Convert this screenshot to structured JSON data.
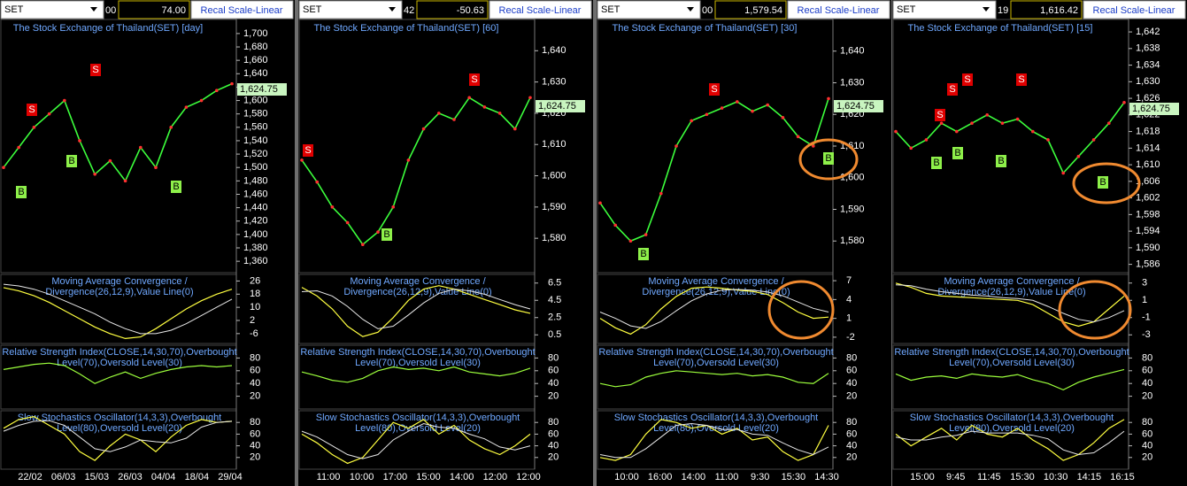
{
  "panels": [
    {
      "symbol": "SET",
      "field": "00",
      "value": "74.00",
      "button": "Recal Scale-Linear",
      "title": "The Stock Exchange of Thailand(SET) [day]",
      "last_price": "1,624.75",
      "price_ylim": [
        1343,
        1721
      ],
      "price_ticks": [
        {
          "value": 1700,
          "label": "1,700"
        },
        {
          "value": 1680,
          "label": "1,680"
        },
        {
          "value": 1660,
          "label": "1,660"
        },
        {
          "value": 1640,
          "label": "1,640"
        },
        {
          "value": 1620,
          "label": "1,620"
        },
        {
          "value": 1600,
          "label": "1,600"
        },
        {
          "value": 1580,
          "label": "1,580"
        },
        {
          "value": 1560,
          "label": "1,560"
        },
        {
          "value": 1540,
          "label": "1,540"
        },
        {
          "value": 1520,
          "label": "1,520"
        },
        {
          "value": 1500,
          "label": "1,500"
        },
        {
          "value": 1480,
          "label": "1,480"
        },
        {
          "value": 1460,
          "label": "1,460"
        },
        {
          "value": 1440,
          "label": "1,440"
        },
        {
          "value": 1420,
          "label": "1,420"
        },
        {
          "value": 1400,
          "label": "1,400"
        },
        {
          "value": 1380,
          "label": "1,380"
        },
        {
          "value": 1360,
          "label": "1,360"
        }
      ],
      "close": [
        1500,
        1530,
        1560,
        1580,
        1600,
        1540,
        1490,
        1510,
        1480,
        1530,
        1500,
        1560,
        1590,
        1600,
        1615,
        1625
      ],
      "signals": [
        "S",
        "S",
        "B",
        "B",
        "B"
      ],
      "macd": {
        "title": [
          "Moving Average Convergence /",
          "Divergence(26,12,9),Value Line(0)"
        ],
        "ylim": [
          -12,
          30
        ],
        "ticks": [
          26,
          18,
          10,
          2,
          -6
        ],
        "values": [
          22,
          20,
          17,
          13,
          8,
          3,
          -2,
          -6,
          -9,
          -8,
          -3,
          3,
          9,
          14,
          18,
          21
        ],
        "signal": [
          24,
          23,
          21,
          18,
          14,
          10,
          6,
          1,
          -3,
          -6,
          -6,
          -4,
          0,
          5,
          10,
          15
        ]
      },
      "rsi": {
        "title": [
          "Relative Strength Index(CLOSE,14,30,70),Overbought",
          "Level(70),Oversold Level(30)"
        ],
        "ylim": [
          0,
          100
        ],
        "ticks": [
          80,
          60,
          40,
          20
        ],
        "values": [
          62,
          66,
          70,
          72,
          68,
          55,
          40,
          50,
          58,
          48,
          56,
          62,
          66,
          68,
          66,
          68
        ]
      },
      "stoch": {
        "title": [
          "Slow Stochastics Oscillator(14,3,3),Overbought",
          "Level(80),Oversold Level(20)"
        ],
        "ylim": [
          0,
          100
        ],
        "ticks": [
          80,
          60,
          40,
          20
        ],
        "values": [
          70,
          85,
          90,
          75,
          60,
          30,
          15,
          40,
          60,
          50,
          30,
          55,
          75,
          85,
          80,
          82
        ],
        "signal": [
          65,
          75,
          82,
          83,
          75,
          55,
          35,
          30,
          38,
          50,
          47,
          45,
          53,
          72,
          80,
          82
        ]
      },
      "x_labels": [
        "22/02",
        "06/03",
        "15/03",
        "26/03",
        "04/04",
        "18/04",
        "29/04"
      ]
    },
    {
      "symbol": "SET",
      "field": "42",
      "value": "-50.63",
      "button": "Recal Scale-Linear",
      "title": "The Stock Exchange of Thailand(SET) [60]",
      "last_price": "1,624.75",
      "price_ylim": [
        1569,
        1650
      ],
      "price_ticks": [
        {
          "value": 1640,
          "label": "1,640"
        },
        {
          "value": 1630,
          "label": "1,630"
        },
        {
          "value": 1620,
          "label": "1,620"
        },
        {
          "value": 1610,
          "label": "1,610"
        },
        {
          "value": 1600,
          "label": "1,600"
        },
        {
          "value": 1590,
          "label": "1,590"
        },
        {
          "value": 1580,
          "label": "1,580"
        }
      ],
      "close": [
        1605,
        1598,
        1590,
        1585,
        1578,
        1582,
        1590,
        1605,
        1615,
        1620,
        1618,
        1625,
        1622,
        1620,
        1615,
        1625
      ],
      "signals": [
        "S",
        "S",
        "B"
      ],
      "macd": {
        "title": [
          "Moving Average Convergence /",
          "Divergence(26,12,9),Value Line(0)"
        ],
        "ylim": [
          -0.5,
          7.5
        ],
        "ticks": [
          6.5,
          4.5,
          2.5,
          0.5
        ],
        "values": [
          6,
          5,
          3.5,
          1.5,
          0.3,
          0.8,
          2.5,
          4.5,
          5.8,
          6.2,
          5.8,
          5.2,
          4.6,
          4,
          3.4,
          3
        ],
        "signal": [
          5.5,
          5.6,
          5,
          3.8,
          2.3,
          1.2,
          1.5,
          2.8,
          4.2,
          5.3,
          5.8,
          5.6,
          5.2,
          4.6,
          4,
          3.5
        ]
      },
      "rsi": {
        "title": [
          "Relative Strength Index(CLOSE,14,30,70),Overbought",
          "Level(70),Oversold Level(30)"
        ],
        "ylim": [
          0,
          100
        ],
        "ticks": [
          80,
          60,
          40,
          20
        ],
        "values": [
          58,
          52,
          45,
          42,
          48,
          60,
          66,
          62,
          64,
          60,
          66,
          58,
          55,
          52,
          56,
          64
        ]
      },
      "stoch": {
        "title": [
          "Slow Stochastics Oscillator(14,3,3),Overbought",
          "Level(80),Oversold Level(20)"
        ],
        "ylim": [
          0,
          100
        ],
        "ticks": [
          80,
          60,
          40,
          20
        ],
        "values": [
          60,
          45,
          25,
          10,
          20,
          50,
          80,
          70,
          85,
          60,
          75,
          50,
          35,
          25,
          40,
          60
        ],
        "signal": [
          65,
          55,
          40,
          25,
          18,
          25,
          50,
          65,
          78,
          72,
          70,
          60,
          52,
          38,
          33,
          40
        ]
      },
      "x_labels": [
        "11:00",
        "10:00",
        "17:00",
        "15:00",
        "14:00",
        "12:00",
        "12:00"
      ]
    },
    {
      "symbol": "SET",
      "field": "00",
      "value": "1,579.54",
      "button": "Recal Scale-Linear",
      "title": "The Stock Exchange of Thailand(SET) [30]",
      "last_price": "1,624.75",
      "price_ylim": [
        1570,
        1650
      ],
      "price_ticks": [
        {
          "value": 1640,
          "label": "1,640"
        },
        {
          "value": 1630,
          "label": "1,630"
        },
        {
          "value": 1620,
          "label": "1,620"
        },
        {
          "value": 1610,
          "label": "1,610"
        },
        {
          "value": 1600,
          "label": "1,600"
        },
        {
          "value": 1590,
          "label": "1,590"
        },
        {
          "value": 1580,
          "label": "1,580"
        }
      ],
      "close": [
        1592,
        1585,
        1580,
        1582,
        1595,
        1610,
        1618,
        1620,
        1622,
        1624,
        1621,
        1623,
        1619,
        1613,
        1610,
        1625
      ],
      "signals": [
        "S",
        "B",
        "B"
      ],
      "macd": {
        "title": [
          "Moving Average Convergence /",
          "Divergence(26,12,9),Value Line(0)"
        ],
        "ylim": [
          -3,
          8
        ],
        "ticks": [
          7,
          4,
          1,
          -2
        ],
        "values": [
          1,
          -0.5,
          -1.5,
          0,
          2.5,
          4.5,
          5.8,
          6,
          5.8,
          5.5,
          5.3,
          4.8,
          3.5,
          2,
          1,
          1.2
        ],
        "signal": [
          2,
          1,
          -0.2,
          -0.6,
          0.5,
          2.2,
          3.8,
          4.9,
          5.5,
          5.6,
          5.5,
          5.2,
          4.6,
          3.6,
          2.6,
          2
        ]
      },
      "rsi": {
        "title": [
          "Relative Strength Index(CLOSE,14,30,70),Overbought",
          "Level(70),Oversold Level(30)"
        ],
        "ylim": [
          0,
          100
        ],
        "ticks": [
          80,
          60,
          40,
          20
        ],
        "values": [
          40,
          35,
          38,
          50,
          56,
          60,
          58,
          56,
          54,
          56,
          52,
          54,
          50,
          42,
          40,
          56
        ]
      },
      "stoch": {
        "title": [
          "Slow Stochastics Oscillator(14,3,3),Overbought",
          "Level(80),Oversold Level(20)"
        ],
        "ylim": [
          0,
          100
        ],
        "ticks": [
          80,
          60,
          40,
          20
        ],
        "values": [
          20,
          15,
          25,
          60,
          85,
          80,
          70,
          75,
          60,
          70,
          50,
          55,
          30,
          15,
          25,
          75
        ],
        "signal": [
          25,
          20,
          20,
          35,
          55,
          75,
          78,
          75,
          68,
          68,
          60,
          58,
          45,
          33,
          25,
          38
        ]
      },
      "x_labels": [
        "10:00",
        "16:00",
        "14:00",
        "11:00",
        "9:30",
        "15:30",
        "14:30"
      ]
    },
    {
      "symbol": "SET",
      "field": "19",
      "value": "1,616.42",
      "button": "Recal Scale-Linear",
      "title": "The Stock Exchange of Thailand(SET) [15]",
      "last_price": "1,624.75",
      "price_ylim": [
        1584,
        1645
      ],
      "price_ticks": [
        {
          "value": 1642,
          "label": "1,642"
        },
        {
          "value": 1638,
          "label": "1,638"
        },
        {
          "value": 1634,
          "label": "1,634"
        },
        {
          "value": 1630,
          "label": "1,630"
        },
        {
          "value": 1626,
          "label": "1,626"
        },
        {
          "value": 1622,
          "label": "1,622"
        },
        {
          "value": 1618,
          "label": "1,618"
        },
        {
          "value": 1614,
          "label": "1,614"
        },
        {
          "value": 1610,
          "label": "1,610"
        },
        {
          "value": 1606,
          "label": "1,606"
        },
        {
          "value": 1602,
          "label": "1,602"
        },
        {
          "value": 1598,
          "label": "1,598"
        },
        {
          "value": 1594,
          "label": "1,594"
        },
        {
          "value": 1590,
          "label": "1,590"
        },
        {
          "value": 1586,
          "label": "1,586"
        }
      ],
      "close": [
        1618,
        1614,
        1616,
        1620,
        1618,
        1620,
        1622,
        1620,
        1621,
        1618,
        1616,
        1608,
        1612,
        1616,
        1620,
        1625
      ],
      "signals": [
        "S",
        "S",
        "S",
        "S",
        "B",
        "B",
        "B",
        "B"
      ],
      "macd": {
        "title": [
          "Moving Average Convergence /",
          "Divergence(26,12,9),Value Line(0)"
        ],
        "ylim": [
          -4,
          4
        ],
        "ticks": [
          3,
          1,
          -1,
          -3
        ],
        "values": [
          3,
          2.5,
          1.8,
          1.5,
          1.4,
          1.3,
          1.2,
          1.1,
          1,
          0.5,
          -0.5,
          -1.5,
          -2,
          -1.5,
          0,
          1.5
        ],
        "signal": [
          2.8,
          2.7,
          2.3,
          2,
          1.8,
          1.6,
          1.5,
          1.3,
          1.2,
          1,
          0.3,
          -0.5,
          -1.2,
          -1.5,
          -1,
          -0.2
        ]
      },
      "rsi": {
        "title": [
          "Relative Strength Index(CLOSE,14,30,70),Overbought",
          "Level(70),Oversold Level(30)"
        ],
        "ylim": [
          0,
          100
        ],
        "ticks": [
          80,
          60,
          40,
          20
        ],
        "values": [
          55,
          45,
          50,
          52,
          48,
          55,
          52,
          50,
          54,
          46,
          40,
          30,
          42,
          50,
          56,
          62
        ]
      },
      "stoch": {
        "title": [
          "Slow Stochastics Oscillator(14,3,3),Overbought",
          "Level(80),Oversold Level(20)"
        ],
        "ylim": [
          0,
          100
        ],
        "ticks": [
          80,
          60,
          40,
          20
        ],
        "values": [
          60,
          40,
          55,
          70,
          50,
          75,
          60,
          55,
          70,
          50,
          35,
          15,
          25,
          45,
          70,
          85
        ],
        "signal": [
          55,
          50,
          50,
          55,
          58,
          65,
          62,
          62,
          62,
          58,
          52,
          33,
          25,
          28,
          45,
          65
        ]
      },
      "x_labels": [
        "15:00",
        "9:45",
        "11:45",
        "15:30",
        "10:30",
        "14:15",
        "16:15"
      ]
    }
  ]
}
